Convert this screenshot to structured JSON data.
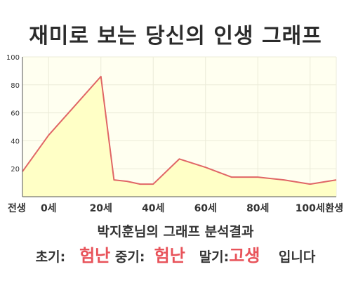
{
  "title": "재미로 보는 당신의 인생 그래프",
  "chart_data": {
    "type": "area",
    "x": [
      -10,
      0,
      10,
      20,
      25,
      30,
      35,
      40,
      50,
      60,
      70,
      80,
      90,
      100,
      110
    ],
    "y": [
      18,
      44,
      65,
      86,
      12,
      11,
      9,
      9,
      27,
      21,
      14,
      14,
      12,
      9,
      12
    ],
    "x_tick_labels": [
      {
        "x": -10,
        "label": "전생"
      },
      {
        "x": 0,
        "label": "0세"
      },
      {
        "x": 20,
        "label": "20세"
      },
      {
        "x": 40,
        "label": "40세"
      },
      {
        "x": 60,
        "label": "60세"
      },
      {
        "x": 80,
        "label": "80세"
      },
      {
        "x": 100,
        "label": "100세"
      },
      {
        "x": 110,
        "label": "환생"
      }
    ],
    "y_ticks": [
      20,
      40,
      60,
      80,
      100
    ],
    "xlim": [
      -10,
      110
    ],
    "ylim": [
      0,
      100
    ],
    "grid": true,
    "colors": {
      "fill": "#ffffc6",
      "line": "#e06666",
      "plot_bg": "#fffff0",
      "grid": "#ebebd8",
      "axis": "#555555"
    }
  },
  "summary": {
    "line1": "박지훈님의 그래프 분석결과",
    "early_label": "초기:",
    "early_value": "험난",
    "mid_label": "중기:",
    "mid_value": "험난",
    "late_label": "말기:",
    "late_value": "고생",
    "ending": "입니다"
  },
  "colors": {
    "title": "#2b2b2b",
    "highlight": "#e8535a",
    "text": "#333333"
  }
}
